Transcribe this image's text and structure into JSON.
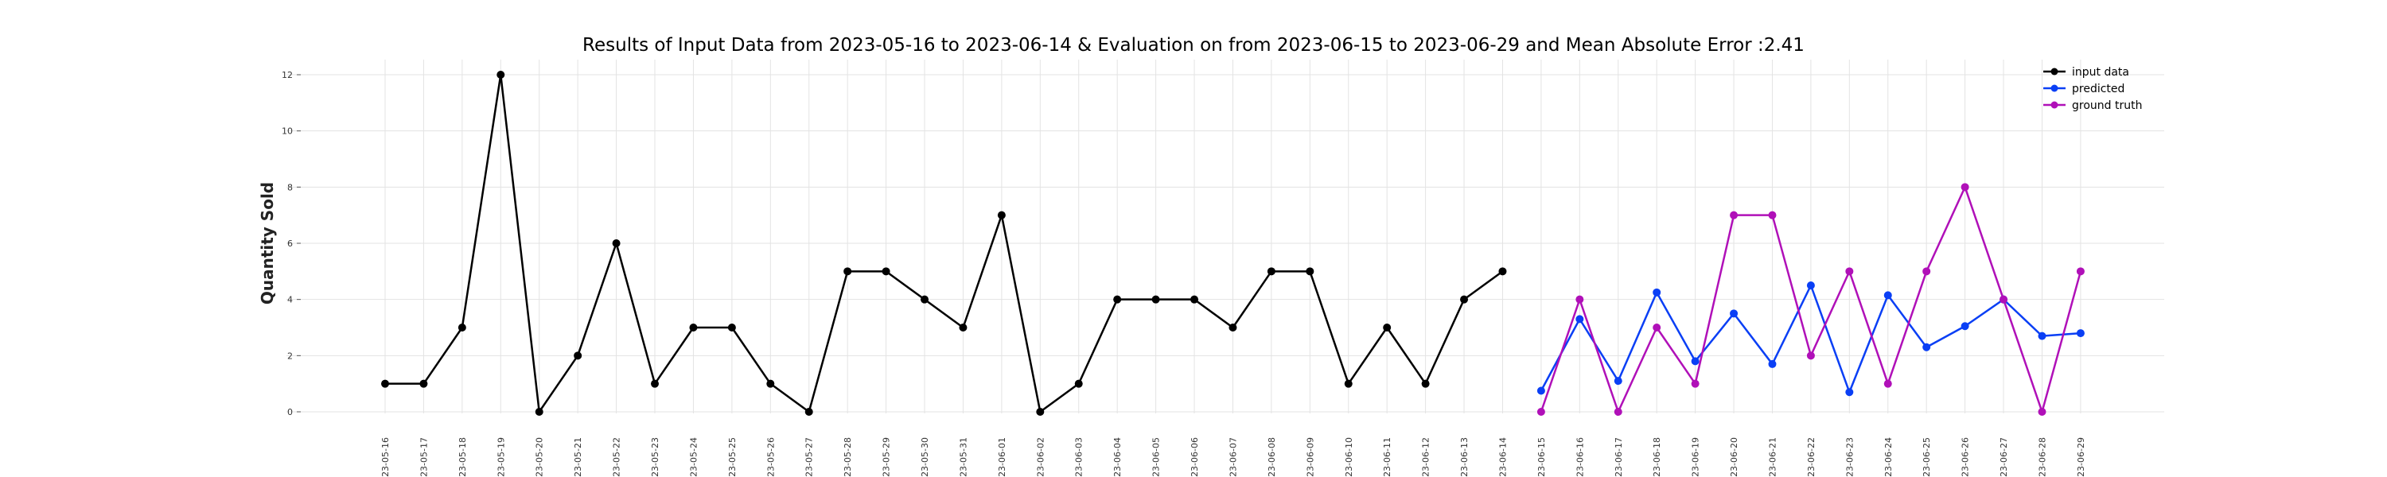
{
  "chart_data": {
    "type": "line",
    "title": "Results of Input Data from 2023-05-16 to 2023-06-14 & Evaluation on from 2023-06-15 to 2023-06-29 and Mean Absolute Error  :2.41",
    "xlabel": "",
    "ylabel": "Quantity Sold",
    "ylim": [
      0,
      12
    ],
    "yticks": [
      0,
      2,
      4,
      6,
      8,
      10,
      12
    ],
    "grid": true,
    "legend_position": "top-right",
    "x": [
      "2023-05-16",
      "2023-05-17",
      "2023-05-18",
      "2023-05-19",
      "2023-05-20",
      "2023-05-21",
      "2023-05-22",
      "2023-05-23",
      "2023-05-24",
      "2023-05-25",
      "2023-05-26",
      "2023-05-27",
      "2023-05-28",
      "2023-05-29",
      "2023-05-30",
      "2023-05-31",
      "2023-06-01",
      "2023-06-02",
      "2023-06-03",
      "2023-06-04",
      "2023-06-05",
      "2023-06-06",
      "2023-06-07",
      "2023-06-08",
      "2023-06-09",
      "2023-06-10",
      "2023-06-11",
      "2023-06-12",
      "2023-06-13",
      "2023-06-14",
      "2023-06-15",
      "2023-06-16",
      "2023-06-17",
      "2023-06-18",
      "2023-06-19",
      "2023-06-20",
      "2023-06-21",
      "2023-06-22",
      "2023-06-23",
      "2023-06-24",
      "2023-06-25",
      "2023-06-26",
      "2023-06-27",
      "2023-06-28",
      "2023-06-29"
    ],
    "xtick_labels": [
      "-23-05-16",
      "-23-05-17",
      "-23-05-18",
      "-23-05-19",
      "-23-05-20",
      "-23-05-21",
      "-23-05-22",
      "-23-05-23",
      "-23-05-24",
      "-23-05-25",
      "-23-05-26",
      "-23-05-27",
      "-23-05-28",
      "-23-05-29",
      "-23-05-30",
      "-23-05-31",
      "-23-06-01",
      "-23-06-02",
      "-23-06-03",
      "-23-06-04",
      "-23-06-05",
      "-23-06-06",
      "-23-06-07",
      "-23-06-08",
      "-23-06-09",
      "-23-06-10",
      "-23-06-11",
      "-23-06-12",
      "-23-06-13",
      "-23-06-14",
      "-23-06-15",
      "-23-06-16",
      "-23-06-17",
      "-23-06-18",
      "-23-06-19",
      "-23-06-20",
      "-23-06-21",
      "-23-06-22",
      "-23-06-23",
      "-23-06-24",
      "-23-06-25",
      "-23-06-26",
      "-23-06-27",
      "-23-06-28",
      "-23-06-29"
    ],
    "series": [
      {
        "name": "input data",
        "color": "#000000",
        "x": [
          "2023-05-16",
          "2023-05-17",
          "2023-05-18",
          "2023-05-19",
          "2023-05-20",
          "2023-05-21",
          "2023-05-22",
          "2023-05-23",
          "2023-05-24",
          "2023-05-25",
          "2023-05-26",
          "2023-05-27",
          "2023-05-28",
          "2023-05-29",
          "2023-05-30",
          "2023-05-31",
          "2023-06-01",
          "2023-06-02",
          "2023-06-03",
          "2023-06-04",
          "2023-06-05",
          "2023-06-06",
          "2023-06-07",
          "2023-06-08",
          "2023-06-09",
          "2023-06-10",
          "2023-06-11",
          "2023-06-12",
          "2023-06-13",
          "2023-06-14"
        ],
        "values": [
          1,
          1,
          3,
          12,
          0,
          2,
          6,
          1,
          3,
          3,
          1,
          0,
          5,
          5,
          4,
          3,
          7,
          0,
          1,
          4,
          4,
          4,
          3,
          5,
          5,
          1,
          3,
          1,
          4,
          5
        ]
      },
      {
        "name": "predicted",
        "color": "#0a3ff5",
        "x": [
          "2023-06-15",
          "2023-06-16",
          "2023-06-17",
          "2023-06-18",
          "2023-06-19",
          "2023-06-20",
          "2023-06-21",
          "2023-06-22",
          "2023-06-23",
          "2023-06-24",
          "2023-06-25",
          "2023-06-26",
          "2023-06-27",
          "2023-06-28",
          "2023-06-29"
        ],
        "values": [
          0.75,
          3.3,
          1.1,
          4.25,
          1.8,
          3.5,
          1.7,
          4.5,
          0.7,
          4.15,
          2.3,
          3.05,
          4.0,
          2.7,
          2.8
        ]
      },
      {
        "name": "ground truth",
        "color": "#b010b8",
        "x": [
          "2023-06-15",
          "2023-06-16",
          "2023-06-17",
          "2023-06-18",
          "2023-06-19",
          "2023-06-20",
          "2023-06-21",
          "2023-06-22",
          "2023-06-23",
          "2023-06-24",
          "2023-06-25",
          "2023-06-26",
          "2023-06-27",
          "2023-06-28",
          "2023-06-29"
        ],
        "values": [
          0,
          4,
          0,
          3,
          1,
          7,
          7,
          2,
          5,
          1,
          5,
          8,
          4,
          0,
          5
        ]
      }
    ]
  }
}
